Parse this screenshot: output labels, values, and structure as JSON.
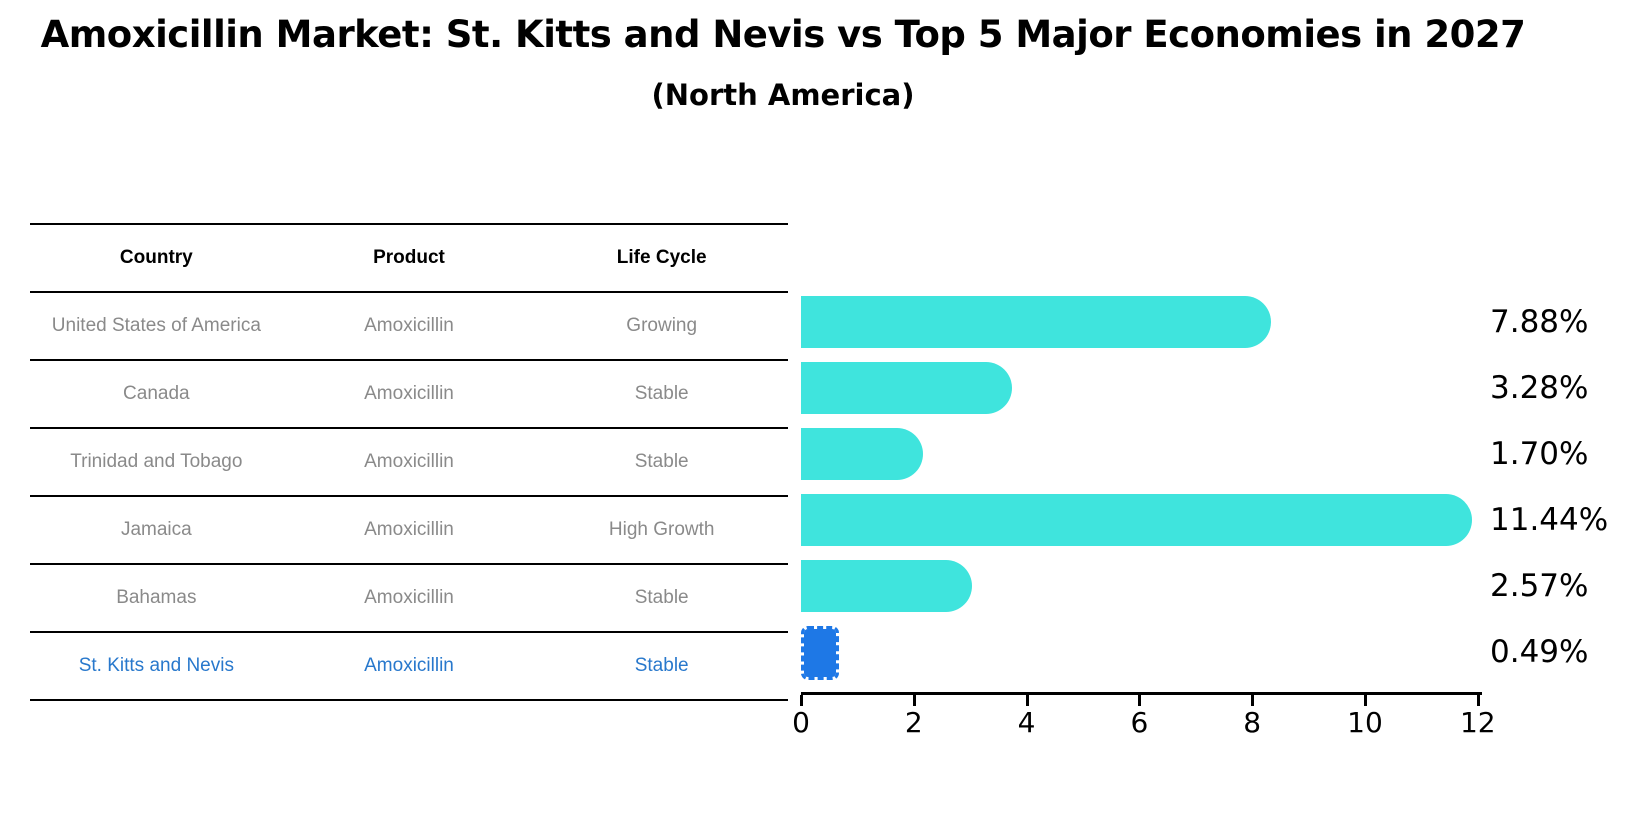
{
  "title": "Amoxicillin Market: St. Kitts and Nevis vs Top 5 Major Economies in 2027",
  "subtitle": "(North America)",
  "table": {
    "headers": [
      "Country",
      "Product",
      "Life Cycle"
    ],
    "rows": [
      {
        "country": "United States of America",
        "product": "Amoxicillin",
        "life_cycle": "Growing",
        "highlight": false
      },
      {
        "country": "Canada",
        "product": "Amoxicillin",
        "life_cycle": "Stable",
        "highlight": false
      },
      {
        "country": "Trinidad and Tobago",
        "product": "Amoxicillin",
        "life_cycle": "Stable",
        "highlight": false
      },
      {
        "country": "Jamaica",
        "product": "Amoxicillin",
        "life_cycle": "High Growth",
        "highlight": false
      },
      {
        "country": "Bahamas",
        "product": "Amoxicillin",
        "life_cycle": "Stable",
        "highlight": false
      },
      {
        "country": "St. Kitts and Nevis",
        "product": "Amoxicillin",
        "life_cycle": "Stable",
        "highlight": true
      }
    ]
  },
  "chart_data": {
    "type": "bar",
    "orientation": "horizontal",
    "title": "Amoxicillin Market: St. Kitts and Nevis vs Top 5 Major Economies in 2027",
    "subtitle": "(North America)",
    "categories": [
      "United States of America",
      "Canada",
      "Trinidad and Tobago",
      "Jamaica",
      "Bahamas",
      "St. Kitts and Nevis"
    ],
    "values": [
      7.88,
      3.28,
      1.7,
      11.44,
      2.57,
      0.49
    ],
    "labels": [
      "7.88%",
      "3.28%",
      "1.70%",
      "11.44%",
      "2.57%",
      "0.49%"
    ],
    "xlabel": "",
    "ylabel": "",
    "xlim": [
      0,
      12
    ],
    "x_ticks": [
      0,
      2,
      4,
      6,
      8,
      10,
      12
    ],
    "grid": false,
    "legend": false,
    "highlight_category": "St. Kitts and Nevis"
  },
  "colors": {
    "bar_cyan": "#3fe4dd",
    "bar_blue": "#1e78e6",
    "highlight_text": "#2878cc",
    "table_text": "#8a8a8a"
  }
}
